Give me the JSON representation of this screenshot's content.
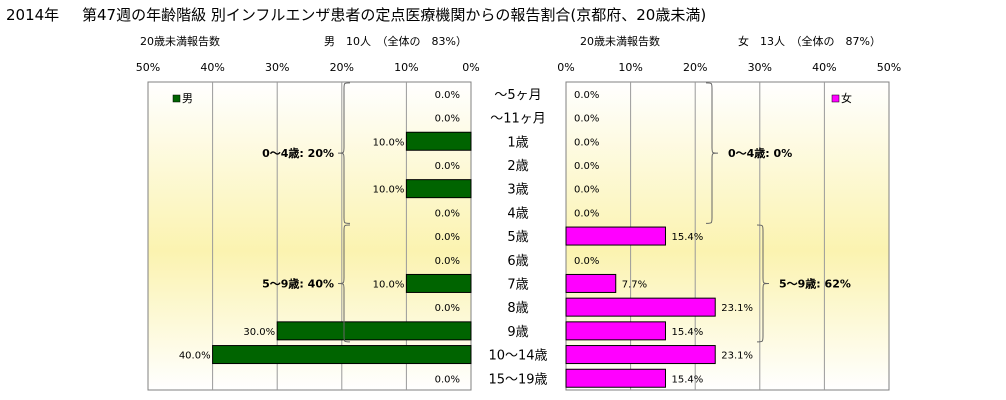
{
  "header": {
    "year": "2014年",
    "title": "第47週の年齢階級 別インフルエンザ患者の定点医療機関からの報告割合(京都府、20歳未満)"
  },
  "chart_data": {
    "type": "bar",
    "categories": [
      "～5ヶ月",
      "～11ヶ月",
      "1歳",
      "2歳",
      "3歳",
      "4歳",
      "5歳",
      "6歳",
      "7歳",
      "8歳",
      "9歳",
      "10～14歳",
      "15～19歳"
    ],
    "tick_labels": [
      "0%",
      "10%",
      "20%",
      "30%",
      "40%",
      "50%"
    ],
    "xlim": [
      0,
      50
    ],
    "grid": true,
    "charts": {
      "male": {
        "report_label": "20歳未満報告数",
        "summary": "男　10人　（全体の　83%）",
        "legend": "男",
        "legend_position": "top-left",
        "direction": "right-to-left",
        "color": "#006400",
        "values": [
          0,
          0,
          10,
          0,
          10,
          0,
          0,
          0,
          10,
          0,
          30,
          40,
          0
        ],
        "value_labels": [
          "0.0%",
          "0.0%",
          "10.0%",
          "0.0%",
          "10.0%",
          "0.0%",
          "0.0%",
          "0.0%",
          "10.0%",
          "0.0%",
          "30.0%",
          "40.0%",
          "0.0%"
        ],
        "groups": [
          {
            "label": "0～4歳: 20%",
            "from": 0,
            "to": 5
          },
          {
            "label": "5～9歳: 40%",
            "from": 6,
            "to": 10
          }
        ]
      },
      "female": {
        "report_label": "20歳未満報告数",
        "summary": "女　13人　（全体の　87%）",
        "legend": "女",
        "legend_position": "top-right",
        "direction": "left-to-right",
        "color": "#ff00ff",
        "values": [
          0,
          0,
          0,
          0,
          0,
          0,
          15.4,
          0,
          7.7,
          23.1,
          15.4,
          23.1,
          15.4
        ],
        "value_labels": [
          "0.0%",
          "0.0%",
          "0.0%",
          "0.0%",
          "0.0%",
          "0.0%",
          "15.4%",
          "0.0%",
          "7.7%",
          "23.1%",
          "15.4%",
          "23.1%",
          "15.4%"
        ],
        "groups": [
          {
            "label": "0～4歳: 0%",
            "from": 0,
            "to": 5
          },
          {
            "label": "5～9歳: 62%",
            "from": 6,
            "to": 10
          }
        ]
      }
    }
  }
}
